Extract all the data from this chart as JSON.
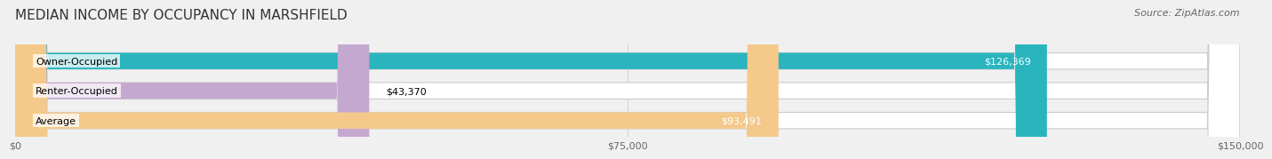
{
  "title": "MEDIAN INCOME BY OCCUPANCY IN MARSHFIELD",
  "source": "Source: ZipAtlas.com",
  "categories": [
    "Owner-Occupied",
    "Renter-Occupied",
    "Average"
  ],
  "values": [
    126369,
    43370,
    93491
  ],
  "labels": [
    "$126,369",
    "$43,370",
    "$93,491"
  ],
  "bar_colors": [
    "#2ab5be",
    "#c4a8d0",
    "#f5c98a"
  ],
  "background_color": "#f0f0f0",
  "xlim": [
    0,
    150000
  ],
  "xticks": [
    0,
    75000,
    150000
  ],
  "xticklabels": [
    "$0",
    "$75,000",
    "$150,000"
  ],
  "title_fontsize": 11,
  "source_fontsize": 8,
  "label_fontsize": 8,
  "category_fontsize": 8
}
